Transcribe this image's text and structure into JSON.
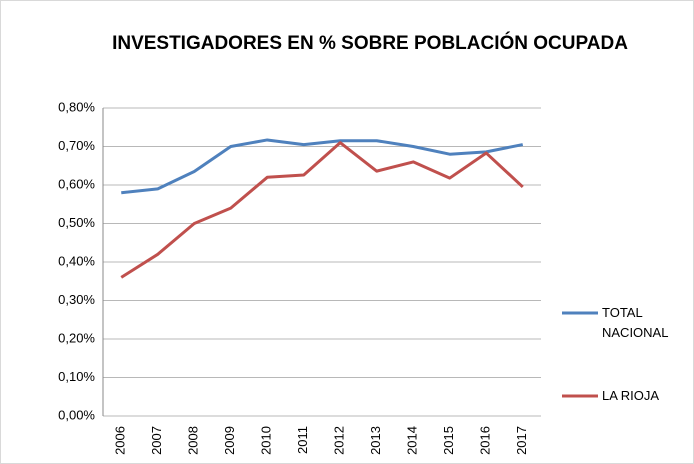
{
  "chart_data": {
    "type": "line",
    "title": "INVESTIGADORES EN % SOBRE POBLACIÓN OCUPADA",
    "categories": [
      "2006",
      "2007",
      "2008",
      "2009",
      "2010",
      "2011",
      "2012",
      "2013",
      "2014",
      "2015",
      "2016",
      "2017"
    ],
    "series": [
      {
        "name": "TOTAL NACIONAL",
        "color": "#4f81bd",
        "values": [
          0.58,
          0.59,
          0.635,
          0.7,
          0.717,
          0.705,
          0.715,
          0.715,
          0.7,
          0.68,
          0.686,
          0.705
        ]
      },
      {
        "name": "LA RIOJA",
        "color": "#c0504d",
        "values": [
          0.36,
          0.42,
          0.5,
          0.54,
          0.62,
          0.626,
          0.71,
          0.636,
          0.66,
          0.618,
          0.683,
          0.595
        ]
      }
    ],
    "ylim": [
      0,
      0.8
    ],
    "yticks": [
      {
        "value": 0,
        "label": "0,00%"
      },
      {
        "value": 0.1,
        "label": "0,10%"
      },
      {
        "value": 0.2,
        "label": "0,20%"
      },
      {
        "value": 0.3,
        "label": "0,30%"
      },
      {
        "value": 0.4,
        "label": "0,40%"
      },
      {
        "value": 0.5,
        "label": "0,50%"
      },
      {
        "value": 0.6,
        "label": "0,60%"
      },
      {
        "value": 0.7,
        "label": "0,70%"
      },
      {
        "value": 0.8,
        "label": "0,80%"
      }
    ],
    "grid": true,
    "legend": "right"
  }
}
